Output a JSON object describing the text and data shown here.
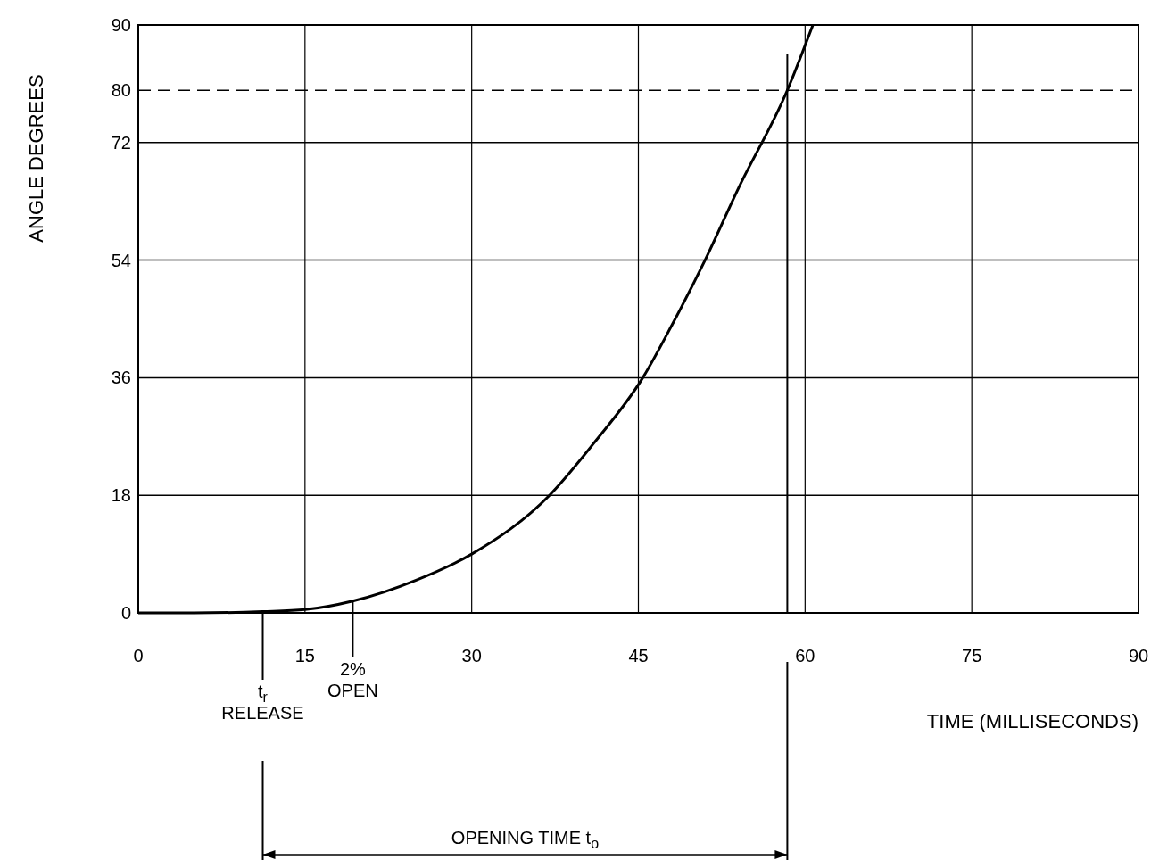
{
  "chart_data": {
    "type": "line",
    "xlabel": "TIME (MILLISECONDS)",
    "ylabel": "ANGLE DEGREES",
    "x": [
      0,
      5,
      11.2,
      15,
      19.3,
      25,
      30,
      37,
      41,
      45.4,
      48,
      51,
      54,
      58.4,
      60.7
    ],
    "values": [
      0,
      0,
      0.2,
      0.5,
      1.8,
      5,
      9,
      18,
      26,
      36,
      44,
      54,
      65,
      80,
      90
    ],
    "color": "#000000",
    "xlim": [
      0,
      90
    ],
    "xticks": [
      0,
      15,
      30,
      45,
      60,
      75,
      90
    ],
    "ylim": [
      0,
      90
    ],
    "yticks": [
      0,
      18,
      36,
      54,
      72,
      80,
      90
    ],
    "grid": true,
    "line_style": "solid",
    "ref_lines": [
      {
        "axis": "y",
        "value": 80,
        "line_style": "dashed"
      },
      {
        "axis": "x",
        "value": 58.4
      }
    ],
    "annotations": [
      {
        "text": "t$_{r}$\nRELEASE",
        "x": 11.2,
        "y": 0
      },
      {
        "text": "2%\nOPEN",
        "x": 19.3,
        "y": 1.8
      },
      "OPENING TIME t$_{o}$"
    ]
  }
}
